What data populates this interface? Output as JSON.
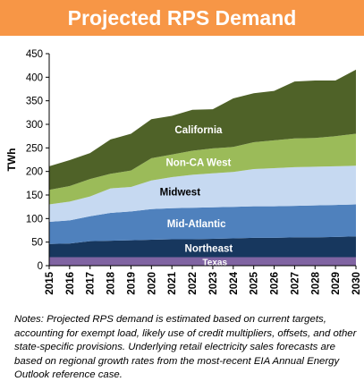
{
  "title": "Projected RPS Demand",
  "notes": "Notes: Projected RPS demand is estimated based on current targets, accounting for exempt load, likely use of credit multipliers, offsets, and other state-specific provisions. Underlying retail electricity sales forecasts are based on regional growth rates from the most-recent EIA Annual Energy Outlook reference case.",
  "chart_data": {
    "type": "area",
    "stacked": true,
    "ylabel": "TWh",
    "xlabel": "",
    "ylim": [
      0,
      450
    ],
    "yticks": [
      0,
      50,
      100,
      150,
      200,
      250,
      300,
      350,
      400,
      450
    ],
    "categories": [
      "2015",
      "2016",
      "2017",
      "2018",
      "2019",
      "2020",
      "2021",
      "2022",
      "2023",
      "2024",
      "2025",
      "2026",
      "2027",
      "2028",
      "2029",
      "2030"
    ],
    "series": [
      {
        "name": "Texas",
        "color": "#8064a2",
        "values": [
          18,
          18,
          18,
          18,
          18,
          18,
          18,
          18,
          18,
          18,
          18,
          18,
          18,
          18,
          18,
          18
        ]
      },
      {
        "name": "Northeast",
        "color": "#17375e",
        "values": [
          28,
          29,
          34,
          35,
          36,
          37,
          38,
          38,
          39,
          40,
          41,
          41,
          42,
          42,
          43,
          44
        ]
      },
      {
        "name": "Mid-Atlantic",
        "color": "#4f81bd",
        "values": [
          47,
          49,
          53,
          59,
          61,
          65,
          66,
          67,
          67,
          67,
          67,
          67,
          67,
          68,
          68,
          68
        ]
      },
      {
        "name": "Midwest",
        "color": "#c6d9f1",
        "values": [
          37,
          40,
          42,
          52,
          52,
          61,
          66,
          70,
          72,
          74,
          79,
          81,
          82,
          82,
          82,
          82
        ]
      },
      {
        "name": "Non-CA West",
        "color": "#9bbb59",
        "values": [
          31,
          33,
          37,
          31,
          35,
          47,
          48,
          51,
          53,
          53,
          57,
          59,
          61,
          61,
          64,
          68
        ]
      },
      {
        "name": "California",
        "color": "#4f6228",
        "values": [
          50,
          55,
          55,
          73,
          78,
          83,
          82,
          87,
          83,
          103,
          104,
          105,
          121,
          122,
          118,
          136
        ]
      }
    ]
  }
}
